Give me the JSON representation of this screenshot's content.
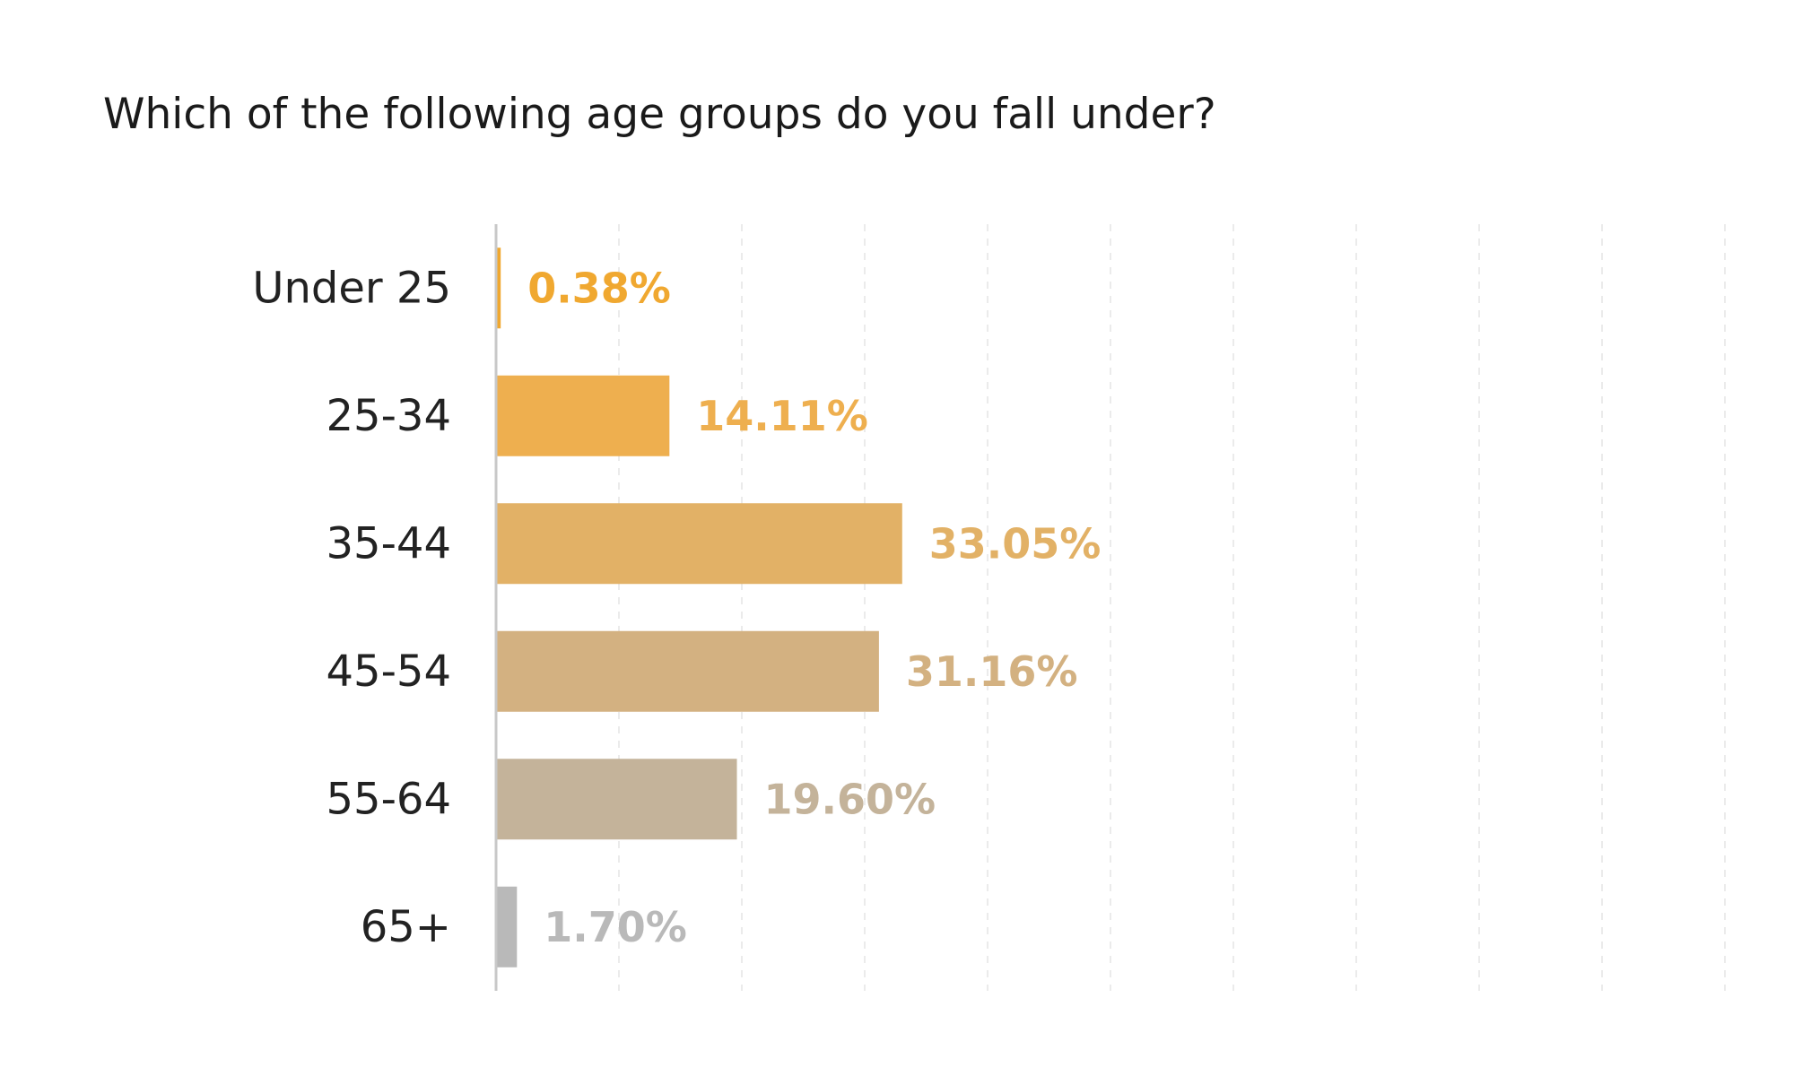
{
  "title": "Which of the following age groups do you fall under?",
  "chart_data": {
    "type": "bar",
    "orientation": "horizontal",
    "title": "Which of the following age groups do you fall under?",
    "categories": [
      "Under 25",
      "25-34",
      "35-44",
      "45-54",
      "55-64",
      "65+"
    ],
    "values": [
      0.38,
      14.11,
      33.05,
      31.16,
      19.6,
      1.7
    ],
    "value_labels": [
      "0.38%",
      "14.11%",
      "33.05%",
      "31.16%",
      "19.60%",
      "1.70%"
    ],
    "colors": [
      "#f0a830",
      "#eeaf4f",
      "#e2b166",
      "#d3b181",
      "#c4b39a",
      "#b9b9b9"
    ],
    "xlim": [
      0,
      100
    ],
    "xlabel": "",
    "ylabel": "",
    "grid": true,
    "grid_style": "dashed vertical",
    "legend": "none"
  }
}
